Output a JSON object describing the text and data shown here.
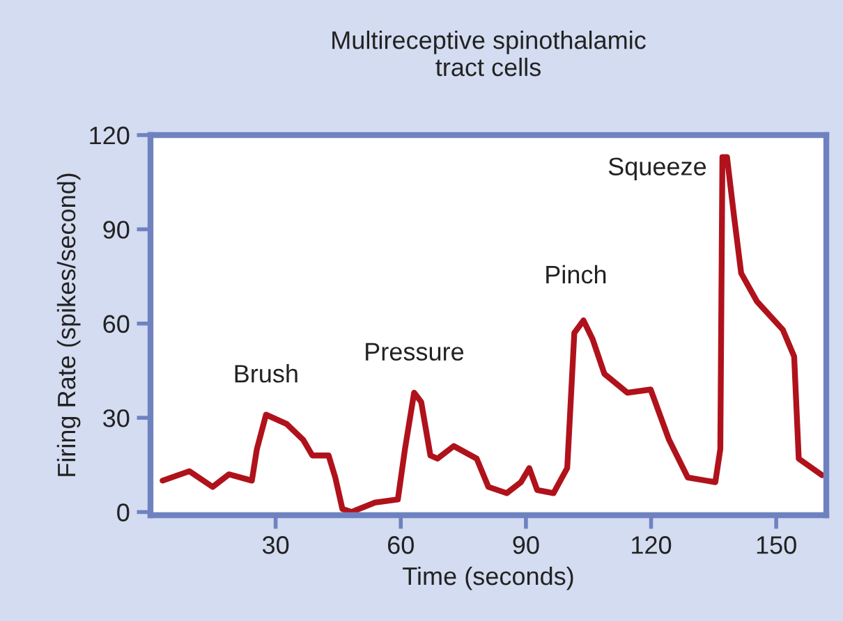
{
  "chart_data": {
    "type": "line",
    "title": "Multireceptive spinothalamic\ntract cells",
    "xlabel": "Time (seconds)",
    "ylabel": "Firing Rate (spikes/second)",
    "x": [
      2.9,
      9.3,
      14.9,
      18.8,
      24.3,
      25.5,
      27.7,
      32.7,
      36.6,
      38.8,
      42.7,
      44.3,
      46,
      48.2,
      53.8,
      59.3,
      61,
      63.2,
      64.9,
      67.1,
      68.8,
      72.7,
      78.2,
      81,
      85.4,
      88.8,
      90.8,
      92.7,
      96.6,
      99.9,
      101.6,
      103.8,
      106,
      108.8,
      114.3,
      119.9,
      124.3,
      128.8,
      135.4,
      136.6,
      137.1,
      138.2,
      139.9,
      141.6,
      145.4,
      151.6,
      154.3,
      155.4,
      161
    ],
    "series": [
      {
        "color": "#b0121b",
        "values": [
          10,
          13,
          8,
          12,
          10,
          20,
          31,
          28,
          23,
          18,
          18,
          11,
          1,
          0,
          3,
          4,
          20,
          38,
          35,
          18,
          17,
          21,
          17,
          8,
          6,
          9.5,
          14,
          7,
          6,
          14,
          57,
          61,
          55,
          44,
          38,
          39,
          23,
          11,
          9.5,
          20,
          113,
          113,
          94,
          76,
          67,
          58,
          49.5,
          17,
          11.7
        ]
      }
    ],
    "annotations": [
      {
        "text": "Brush",
        "x": 27.7,
        "y": 31
      },
      {
        "text": "Pressure",
        "x": 63.2,
        "y": 38
      },
      {
        "text": "Pinch",
        "x": 103.8,
        "y": 61.3
      },
      {
        "text": "Squeeze",
        "x": 137.1,
        "y": 113
      }
    ],
    "xlim": [
      0,
      162
    ],
    "ylim": [
      -1,
      120
    ],
    "xticks": [
      30,
      60,
      90,
      120,
      150
    ],
    "yticks": [
      0,
      30,
      60,
      90,
      120
    ],
    "grid": false,
    "legend": false,
    "marker": "none",
    "line_style": "solid"
  }
}
